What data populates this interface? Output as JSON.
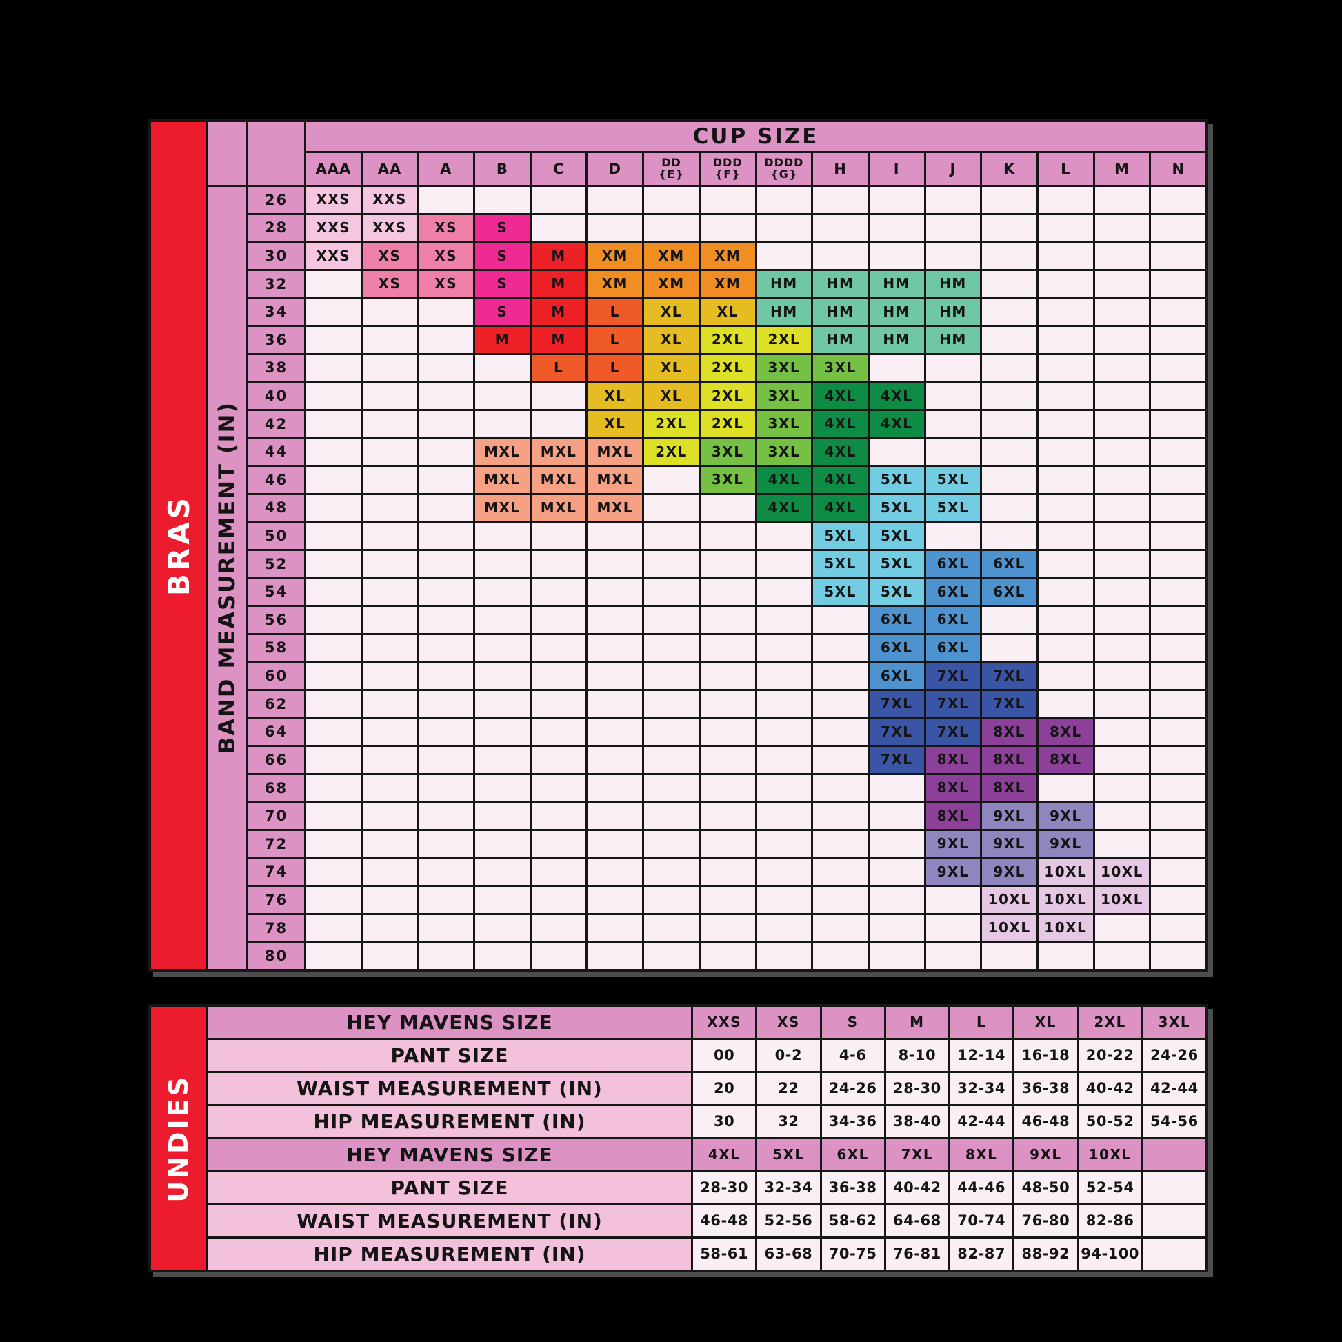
{
  "colors": {
    "background": "#000000",
    "grid_line": "#161616",
    "outer_shadow": "#4d4d4d",
    "sidebar_red": "#EC1B2E",
    "header_pink": "#DC92C3",
    "label_pink_light": "#F3C1DC",
    "empty_cell": "#FAEFF5",
    "text_dark": "#141414",
    "text_light": "#FFFFFF",
    "sizes": {
      "XXS": "#F4C6E0",
      "XS": "#EF80A9",
      "S": "#EF2B93",
      "M": "#EE2226",
      "XM": "#F08E24",
      "L": "#F05A28",
      "XL": "#E5BD23",
      "2XL": "#DEE027",
      "3XL": "#76C043",
      "HM": "#70C7A3",
      "4XL": "#0E8C46",
      "MXL": "#F6A184",
      "5XL": "#72CCE2",
      "6XL": "#4C93D0",
      "7XL": "#3A54A6",
      "8XL": "#8D4099",
      "9XL": "#9086BF",
      "10XL": "#E6C8E4"
    }
  },
  "chart_data": [
    {
      "type": "table",
      "name": "bras-size-chart",
      "sidebar_label": "BRAS",
      "col_axis_title": "CUP SIZE",
      "row_axis_title": "BAND MEASUREMENT (IN)",
      "columns": [
        "AAA",
        "AA",
        "A",
        "B",
        "C",
        "D",
        "DD\n{E}",
        "DDD\n{F}",
        "DDDD\n{G}",
        "H",
        "I",
        "J",
        "K",
        "L",
        "M",
        "N"
      ],
      "rows": [
        {
          "band": "26",
          "cells": [
            "XXS",
            "XXS",
            "",
            "",
            "",
            "",
            "",
            "",
            "",
            "",
            "",
            "",
            "",
            "",
            "",
            ""
          ]
        },
        {
          "band": "28",
          "cells": [
            "XXS",
            "XXS",
            "XS",
            "S",
            "",
            "",
            "",
            "",
            "",
            "",
            "",
            "",
            "",
            "",
            "",
            ""
          ]
        },
        {
          "band": "30",
          "cells": [
            "XXS",
            "XS",
            "XS",
            "S",
            "M",
            "XM",
            "XM",
            "XM",
            "",
            "",
            "",
            "",
            "",
            "",
            "",
            ""
          ]
        },
        {
          "band": "32",
          "cells": [
            "",
            "XS",
            "XS",
            "S",
            "M",
            "XM",
            "XM",
            "XM",
            "HM",
            "HM",
            "HM",
            "HM",
            "",
            "",
            "",
            ""
          ]
        },
        {
          "band": "34",
          "cells": [
            "",
            "",
            "",
            "S",
            "M",
            "L",
            "XL",
            "XL",
            "HM",
            "HM",
            "HM",
            "HM",
            "",
            "",
            "",
            ""
          ]
        },
        {
          "band": "36",
          "cells": [
            "",
            "",
            "",
            "M",
            "M",
            "L",
            "XL",
            "2XL",
            "2XL",
            "HM",
            "HM",
            "HM",
            "",
            "",
            "",
            ""
          ]
        },
        {
          "band": "38",
          "cells": [
            "",
            "",
            "",
            "",
            "L",
            "L",
            "XL",
            "2XL",
            "3XL",
            "3XL",
            "",
            "",
            "",
            "",
            "",
            ""
          ]
        },
        {
          "band": "40",
          "cells": [
            "",
            "",
            "",
            "",
            "",
            "XL",
            "XL",
            "2XL",
            "3XL",
            "4XL",
            "4XL",
            "",
            "",
            "",
            "",
            ""
          ]
        },
        {
          "band": "42",
          "cells": [
            "",
            "",
            "",
            "",
            "",
            "XL",
            "2XL",
            "2XL",
            "3XL",
            "4XL",
            "4XL",
            "",
            "",
            "",
            "",
            ""
          ]
        },
        {
          "band": "44",
          "cells": [
            "",
            "",
            "",
            "MXL",
            "MXL",
            "MXL",
            "2XL",
            "3XL",
            "3XL",
            "4XL",
            "",
            "",
            "",
            "",
            "",
            ""
          ]
        },
        {
          "band": "46",
          "cells": [
            "",
            "",
            "",
            "MXL",
            "MXL",
            "MXL",
            "",
            "3XL",
            "4XL",
            "4XL",
            "5XL",
            "5XL",
            "",
            "",
            "",
            ""
          ]
        },
        {
          "band": "48",
          "cells": [
            "",
            "",
            "",
            "MXL",
            "MXL",
            "MXL",
            "",
            "",
            "4XL",
            "4XL",
            "5XL",
            "5XL",
            "",
            "",
            "",
            ""
          ]
        },
        {
          "band": "50",
          "cells": [
            "",
            "",
            "",
            "",
            "",
            "",
            "",
            "",
            "",
            "5XL",
            "5XL",
            "",
            "",
            "",
            "",
            ""
          ]
        },
        {
          "band": "52",
          "cells": [
            "",
            "",
            "",
            "",
            "",
            "",
            "",
            "",
            "",
            "5XL",
            "5XL",
            "6XL",
            "6XL",
            "",
            "",
            ""
          ]
        },
        {
          "band": "54",
          "cells": [
            "",
            "",
            "",
            "",
            "",
            "",
            "",
            "",
            "",
            "5XL",
            "5XL",
            "6XL",
            "6XL",
            "",
            "",
            ""
          ]
        },
        {
          "band": "56",
          "cells": [
            "",
            "",
            "",
            "",
            "",
            "",
            "",
            "",
            "",
            "",
            "6XL",
            "6XL",
            "",
            "",
            "",
            ""
          ]
        },
        {
          "band": "58",
          "cells": [
            "",
            "",
            "",
            "",
            "",
            "",
            "",
            "",
            "",
            "",
            "6XL",
            "6XL",
            "",
            "",
            "",
            ""
          ]
        },
        {
          "band": "60",
          "cells": [
            "",
            "",
            "",
            "",
            "",
            "",
            "",
            "",
            "",
            "",
            "6XL",
            "7XL",
            "7XL",
            "",
            "",
            ""
          ]
        },
        {
          "band": "62",
          "cells": [
            "",
            "",
            "",
            "",
            "",
            "",
            "",
            "",
            "",
            "",
            "7XL",
            "7XL",
            "7XL",
            "",
            "",
            ""
          ]
        },
        {
          "band": "64",
          "cells": [
            "",
            "",
            "",
            "",
            "",
            "",
            "",
            "",
            "",
            "",
            "7XL",
            "7XL",
            "8XL",
            "8XL",
            "",
            ""
          ]
        },
        {
          "band": "66",
          "cells": [
            "",
            "",
            "",
            "",
            "",
            "",
            "",
            "",
            "",
            "",
            "7XL",
            "8XL",
            "8XL",
            "8XL",
            "",
            ""
          ]
        },
        {
          "band": "68",
          "cells": [
            "",
            "",
            "",
            "",
            "",
            "",
            "",
            "",
            "",
            "",
            "",
            "8XL",
            "8XL",
            "",
            "",
            ""
          ]
        },
        {
          "band": "70",
          "cells": [
            "",
            "",
            "",
            "",
            "",
            "",
            "",
            "",
            "",
            "",
            "",
            "8XL",
            "9XL",
            "9XL",
            "",
            ""
          ]
        },
        {
          "band": "72",
          "cells": [
            "",
            "",
            "",
            "",
            "",
            "",
            "",
            "",
            "",
            "",
            "",
            "9XL",
            "9XL",
            "9XL",
            "",
            ""
          ]
        },
        {
          "band": "74",
          "cells": [
            "",
            "",
            "",
            "",
            "",
            "",
            "",
            "",
            "",
            "",
            "",
            "9XL",
            "9XL",
            "10XL",
            "10XL",
            ""
          ]
        },
        {
          "band": "76",
          "cells": [
            "",
            "",
            "",
            "",
            "",
            "",
            "",
            "",
            "",
            "",
            "",
            "",
            "10XL",
            "10XL",
            "10XL",
            ""
          ]
        },
        {
          "band": "78",
          "cells": [
            "",
            "",
            "",
            "",
            "",
            "",
            "",
            "",
            "",
            "",
            "",
            "",
            "10XL",
            "10XL",
            "",
            ""
          ]
        },
        {
          "band": "80",
          "cells": [
            "",
            "",
            "",
            "",
            "",
            "",
            "",
            "",
            "",
            "",
            "",
            "",
            "",
            "",
            "",
            ""
          ]
        }
      ]
    },
    {
      "type": "table",
      "name": "undies-size-chart",
      "sidebar_label": "UNDIES",
      "rows": [
        {
          "label": "HEY MAVENS SIZE",
          "style": "header",
          "values": [
            "XXS",
            "XS",
            "S",
            "M",
            "L",
            "XL",
            "2XL",
            "3XL"
          ]
        },
        {
          "label": "PANT SIZE",
          "style": "data",
          "values": [
            "00",
            "0-2",
            "4-6",
            "8-10",
            "12-14",
            "16-18",
            "20-22",
            "24-26"
          ]
        },
        {
          "label": "WAIST MEASUREMENT (IN)",
          "style": "data",
          "values": [
            "20",
            "22",
            "24-26",
            "28-30",
            "32-34",
            "36-38",
            "40-42",
            "42-44"
          ]
        },
        {
          "label": "HIP MEASUREMENT (IN)",
          "style": "data",
          "values": [
            "30",
            "32",
            "34-36",
            "38-40",
            "42-44",
            "46-48",
            "50-52",
            "54-56"
          ]
        },
        {
          "label": "HEY MAVENS SIZE",
          "style": "header",
          "values": [
            "4XL",
            "5XL",
            "6XL",
            "7XL",
            "8XL",
            "9XL",
            "10XL",
            ""
          ]
        },
        {
          "label": "PANT SIZE",
          "style": "data",
          "values": [
            "28-30",
            "32-34",
            "36-38",
            "40-42",
            "44-46",
            "48-50",
            "52-54",
            ""
          ]
        },
        {
          "label": "WAIST MEASUREMENT (IN)",
          "style": "data",
          "values": [
            "46-48",
            "52-56",
            "58-62",
            "64-68",
            "70-74",
            "76-80",
            "82-86",
            ""
          ]
        },
        {
          "label": "HIP MEASUREMENT (IN)",
          "style": "data",
          "values": [
            "58-61",
            "63-68",
            "70-75",
            "76-81",
            "82-87",
            "88-92",
            "94-100",
            ""
          ]
        }
      ]
    }
  ]
}
